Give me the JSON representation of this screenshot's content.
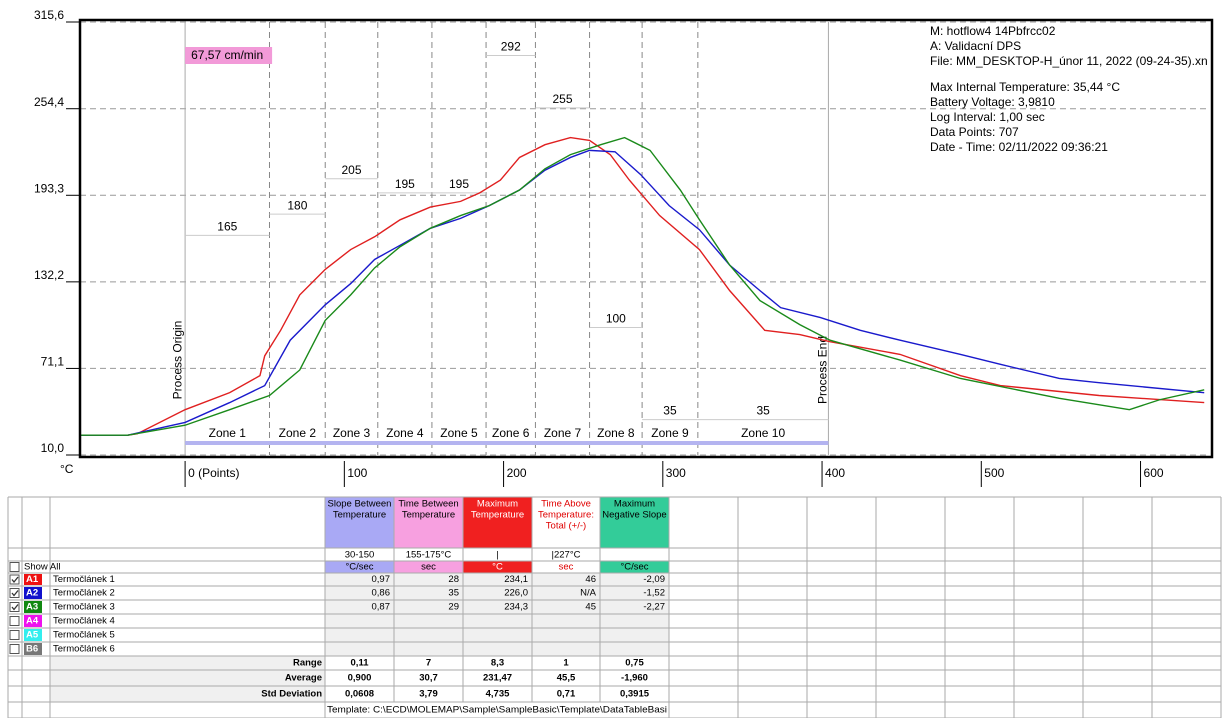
{
  "chart_data": {
    "type": "line",
    "y_unit": "°C",
    "line_speed": "67,57 cm/min",
    "process_origin": "Process Origin",
    "process_end": "Process End",
    "xlim": [
      -66,
      643
    ],
    "ylim": [
      10,
      315.6
    ],
    "xticks": [
      {
        "value": 0,
        "label": "0 (Points)"
      },
      100,
      200,
      300,
      400,
      500,
      600
    ],
    "yticks": [
      {
        "value": 10,
        "label": "10,0"
      },
      {
        "value": 71.1,
        "label": "71,1"
      },
      {
        "value": 132.2,
        "label": "132,2"
      },
      {
        "value": 193.3,
        "label": "193,3"
      },
      {
        "value": 254.4,
        "label": "254,4"
      },
      {
        "value": 315.6,
        "label": "315,6"
      }
    ],
    "grid": true,
    "zones": {
      "edges": [
        0,
        53,
        88,
        121,
        155,
        189,
        220,
        254,
        287,
        322,
        404
      ],
      "labels": [
        "Zone 1",
        "Zone 2",
        "Zone 3",
        "Zone 4",
        "Zone 5",
        "Zone 6",
        "Zone 7",
        "Zone 8",
        "Zone 9",
        "Zone 10"
      ],
      "setpoints": [
        165,
        180,
        205,
        195,
        195,
        292,
        255,
        100,
        35,
        35
      ]
    },
    "series": [
      {
        "name": "A1",
        "color": "#e02020",
        "x": [
          -66,
          -36,
          -30,
          0,
          28,
          47,
          50,
          60,
          72,
          88,
          104,
          119,
          135,
          154,
          173,
          185,
          198,
          210,
          226,
          242,
          254,
          267,
          279,
          298,
          323,
          342,
          364,
          386,
          405,
          449,
          487,
          512,
          574,
          640
        ],
        "values": [
          24,
          24,
          25,
          42,
          54,
          66,
          80,
          98,
          123,
          141,
          155,
          164,
          176,
          185,
          189,
          195,
          204,
          220,
          229,
          234,
          232,
          222,
          204,
          179,
          155,
          126,
          98,
          95,
          90,
          81,
          66,
          59,
          52,
          47
        ]
      },
      {
        "name": "A2",
        "color": "#1a1acc",
        "x": [
          -66,
          -36,
          0,
          28,
          50,
          66,
          88,
          104,
          119,
          135,
          154,
          173,
          191,
          210,
          226,
          242,
          254,
          270,
          286,
          304,
          323,
          342,
          361,
          374,
          399,
          424,
          449,
          487,
          512,
          549,
          574,
          640
        ],
        "values": [
          24,
          24,
          33,
          47,
          59,
          91,
          116,
          131,
          148,
          158,
          170,
          177,
          186,
          197,
          211,
          220,
          225,
          224,
          208,
          186,
          169,
          144,
          126,
          114,
          107,
          98,
          91,
          81,
          74,
          64,
          61,
          54
        ]
      },
      {
        "name": "A3",
        "color": "#1a8a1a",
        "x": [
          -66,
          -36,
          0,
          28,
          53,
          72,
          88,
          104,
          119,
          135,
          154,
          173,
          191,
          210,
          226,
          242,
          261,
          276,
          292,
          311,
          323,
          342,
          361,
          386,
          405,
          449,
          487,
          549,
          593,
          612,
          640
        ],
        "values": [
          24,
          24,
          31,
          42,
          52,
          70,
          105,
          123,
          142,
          157,
          170,
          179,
          186,
          197,
          212,
          222,
          229,
          234,
          225,
          197,
          176,
          144,
          119,
          102,
          91,
          77,
          64,
          50,
          42,
          49,
          56
        ]
      }
    ]
  },
  "info": {
    "header_lines": [
      "M: hotflow4 14Pbfrcc02",
      "A: Validacní DPS",
      "File: MM_DESKTOP-H_únor 11, 2022 (09-24-35).xn"
    ],
    "stats_lines": [
      "Max Internal Temperature:  35,44 °C",
      "Battery Voltage: 3,9810",
      "Log Interval: 1,00 sec",
      "Data Points: 707",
      "Date - Time: 02/11/2022 09:36:21"
    ]
  },
  "table": {
    "show_all": "Show All",
    "columns": [
      {
        "header": [
          "Slope Between",
          "Temperature"
        ],
        "spec": "30-150",
        "unit": "°C/sec",
        "bg": "#a9a9f5",
        "fg": "#000000"
      },
      {
        "header": [
          "Time Between",
          "Temperature"
        ],
        "spec": "155-175°C",
        "unit": "sec",
        "bg": "#f7a0e0",
        "fg": "#000000"
      },
      {
        "header": [
          "Maximum",
          "Temperature"
        ],
        "spec": "|",
        "unit": "°C",
        "bg": "#f02020",
        "fg": "#ffffff"
      },
      {
        "header": [
          "Time Above",
          "Temperature:",
          "Total (+/-)"
        ],
        "spec": "|227°C",
        "unit": "sec",
        "bg": "#ffffff",
        "fg": "#e00000"
      },
      {
        "header": [
          "Maximum",
          "Negative Slope"
        ],
        "unit": "°C/sec",
        "bg": "#33cc99",
        "fg": "#000000"
      }
    ],
    "rows": [
      {
        "id": "A1",
        "name": "Termočlánek 1",
        "checked": true,
        "color": "#ee1111",
        "values": [
          "0,97",
          "28",
          "234,1",
          "46",
          "-2,09"
        ]
      },
      {
        "id": "A2",
        "name": "Termočlánek 2",
        "checked": true,
        "color": "#1111cc",
        "values": [
          "0,86",
          "35",
          "226,0",
          "N/A",
          "-1,52"
        ]
      },
      {
        "id": "A3",
        "name": "Termočlánek 3",
        "checked": true,
        "color": "#118811",
        "values": [
          "0,87",
          "29",
          "234,3",
          "45",
          "-2,27"
        ]
      },
      {
        "id": "A4",
        "name": "Termočlánek 4",
        "checked": false,
        "color": "#ee11ee"
      },
      {
        "id": "A5",
        "name": "Termočlánek 5",
        "checked": false,
        "color": "#33eeee"
      },
      {
        "id": "B6",
        "name": "Termočlánek 6",
        "checked": false,
        "color": "#777777"
      }
    ],
    "stats": [
      {
        "label": "Range",
        "values": [
          "0,11",
          "7",
          "8,3",
          "1",
          "0,75"
        ]
      },
      {
        "label": "Average",
        "values": [
          "0,900",
          "30,7",
          "231,47",
          "45,5",
          "-1,960"
        ]
      },
      {
        "label": "Std Deviation",
        "values": [
          "0,0608",
          "3,79",
          "4,735",
          "0,71",
          "0,3915"
        ]
      }
    ],
    "template": "Template: C:\\ECD\\MOLEMAP\\Sample\\SampleBasic\\Template\\DataTableBasi"
  }
}
